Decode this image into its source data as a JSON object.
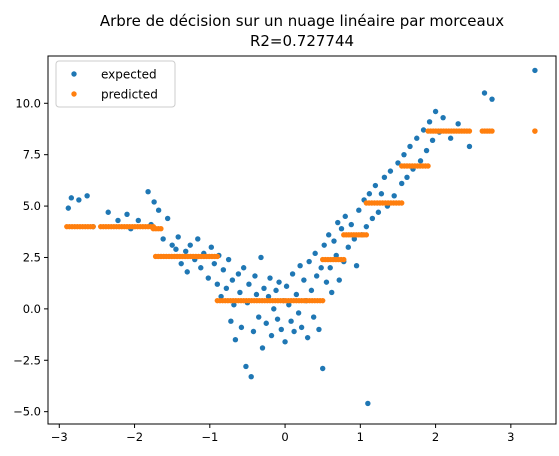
{
  "chart_data": {
    "type": "scatter",
    "title": "Arbre de décision sur un nuage linéaire par morceaux",
    "subtitle": "R2=0.727744",
    "xlabel": "",
    "ylabel": "",
    "xlim": [
      -3.15,
      3.6
    ],
    "ylim": [
      -5.6,
      12.3
    ],
    "xticks": [
      -3,
      -2,
      -1,
      0,
      1,
      2,
      3
    ],
    "yticks": [
      -5.0,
      -2.5,
      0.0,
      2.5,
      5.0,
      7.5,
      10.0
    ],
    "xtick_labels": [
      "−3",
      "−2",
      "−1",
      "0",
      "1",
      "2",
      "3"
    ],
    "ytick_labels": [
      "−5.0",
      "−2.5",
      "0.0",
      "2.5",
      "5.0",
      "7.5",
      "10.0"
    ],
    "grid": false,
    "legend_position": "top-left",
    "series": [
      {
        "name": "expected",
        "color": "#1f77b4",
        "points": [
          [
            -2.88,
            4.9
          ],
          [
            -2.84,
            5.4
          ],
          [
            -2.74,
            5.3
          ],
          [
            -2.63,
            5.5
          ],
          [
            -2.55,
            4.0
          ],
          [
            -2.35,
            4.7
          ],
          [
            -2.22,
            4.3
          ],
          [
            -2.1,
            4.6
          ],
          [
            -2.05,
            3.9
          ],
          [
            -1.95,
            4.3
          ],
          [
            -1.82,
            5.7
          ],
          [
            -1.78,
            4.1
          ],
          [
            -1.74,
            5.2
          ],
          [
            -1.68,
            4.8
          ],
          [
            -1.62,
            3.4
          ],
          [
            -1.56,
            4.4
          ],
          [
            -1.5,
            3.1
          ],
          [
            -1.45,
            2.9
          ],
          [
            -1.42,
            3.5
          ],
          [
            -1.38,
            2.2
          ],
          [
            -1.32,
            2.8
          ],
          [
            -1.3,
            1.8
          ],
          [
            -1.26,
            3.1
          ],
          [
            -1.2,
            2.4
          ],
          [
            -1.16,
            3.4
          ],
          [
            -1.12,
            2.0
          ],
          [
            -1.08,
            2.7
          ],
          [
            -1.02,
            1.5
          ],
          [
            -0.98,
            3.0
          ],
          [
            -0.94,
            2.2
          ],
          [
            -0.9,
            1.2
          ],
          [
            -0.88,
            2.6
          ],
          [
            -0.85,
            0.6
          ],
          [
            -0.82,
            1.9
          ],
          [
            -0.78,
            1.0
          ],
          [
            -0.75,
            2.4
          ],
          [
            -0.72,
            -0.6
          ],
          [
            -0.7,
            1.4
          ],
          [
            -0.68,
            0.2
          ],
          [
            -0.66,
            -1.5
          ],
          [
            -0.62,
            1.7
          ],
          [
            -0.6,
            0.8
          ],
          [
            -0.58,
            -0.9
          ],
          [
            -0.55,
            2.0
          ],
          [
            -0.52,
            -2.8
          ],
          [
            -0.5,
            0.3
          ],
          [
            -0.48,
            1.2
          ],
          [
            -0.45,
            -3.3
          ],
          [
            -0.42,
            -1.1
          ],
          [
            -0.4,
            1.6
          ],
          [
            -0.38,
            0.7
          ],
          [
            -0.35,
            -0.4
          ],
          [
            -0.32,
            2.5
          ],
          [
            -0.3,
            -1.9
          ],
          [
            -0.28,
            1.0
          ],
          [
            -0.25,
            -0.7
          ],
          [
            -0.22,
            0.6
          ],
          [
            -0.2,
            1.5
          ],
          [
            -0.18,
            -1.3
          ],
          [
            -0.15,
            0.0
          ],
          [
            -0.12,
            0.9
          ],
          [
            -0.1,
            -0.5
          ],
          [
            -0.08,
            1.3
          ],
          [
            -0.05,
            -1.0
          ],
          [
            -0.02,
            0.4
          ],
          [
            0.0,
            -1.6
          ],
          [
            0.02,
            1.1
          ],
          [
            0.05,
            0.2
          ],
          [
            0.08,
            -0.6
          ],
          [
            0.1,
            1.7
          ],
          [
            0.12,
            -1.1
          ],
          [
            0.15,
            0.7
          ],
          [
            0.18,
            -0.2
          ],
          [
            0.2,
            2.1
          ],
          [
            0.22,
            -0.9
          ],
          [
            0.25,
            1.4
          ],
          [
            0.28,
            0.4
          ],
          [
            0.3,
            -1.4
          ],
          [
            0.32,
            2.3
          ],
          [
            0.35,
            0.9
          ],
          [
            0.38,
            -0.4
          ],
          [
            0.4,
            2.7
          ],
          [
            0.42,
            1.6
          ],
          [
            0.45,
            -1.0
          ],
          [
            0.48,
            2.0
          ],
          [
            0.5,
            -2.9
          ],
          [
            0.52,
            3.1
          ],
          [
            0.55,
            1.3
          ],
          [
            0.58,
            3.6
          ],
          [
            0.6,
            2.0
          ],
          [
            0.62,
            0.8
          ],
          [
            0.65,
            3.3
          ],
          [
            0.68,
            2.6
          ],
          [
            0.7,
            4.2
          ],
          [
            0.72,
            1.4
          ],
          [
            0.75,
            3.9
          ],
          [
            0.78,
            2.3
          ],
          [
            0.8,
            4.5
          ],
          [
            0.84,
            3.0
          ],
          [
            0.88,
            4.1
          ],
          [
            0.92,
            3.4
          ],
          [
            0.95,
            2.1
          ],
          [
            0.98,
            4.8
          ],
          [
            1.02,
            3.6
          ],
          [
            1.05,
            5.3
          ],
          [
            1.08,
            4.0
          ],
          [
            1.1,
            -4.6
          ],
          [
            1.12,
            5.6
          ],
          [
            1.16,
            4.4
          ],
          [
            1.2,
            6.0
          ],
          [
            1.24,
            4.7
          ],
          [
            1.28,
            5.6
          ],
          [
            1.32,
            6.4
          ],
          [
            1.36,
            5.0
          ],
          [
            1.4,
            6.7
          ],
          [
            1.45,
            5.5
          ],
          [
            1.5,
            7.1
          ],
          [
            1.55,
            6.1
          ],
          [
            1.58,
            7.5
          ],
          [
            1.62,
            6.4
          ],
          [
            1.66,
            7.9
          ],
          [
            1.7,
            6.8
          ],
          [
            1.75,
            8.3
          ],
          [
            1.8,
            7.2
          ],
          [
            1.84,
            8.7
          ],
          [
            1.88,
            7.7
          ],
          [
            1.92,
            9.1
          ],
          [
            1.96,
            8.2
          ],
          [
            2.0,
            9.6
          ],
          [
            2.05,
            8.6
          ],
          [
            2.1,
            9.3
          ],
          [
            2.2,
            8.3
          ],
          [
            2.3,
            9.0
          ],
          [
            2.45,
            7.9
          ],
          [
            2.65,
            10.5
          ],
          [
            2.75,
            10.2
          ],
          [
            3.32,
            11.6
          ]
        ]
      },
      {
        "name": "predicted",
        "color": "#ff7f0e",
        "segments": [
          {
            "x0": -2.9,
            "x1": -2.55,
            "y": 4.0
          },
          {
            "x0": -2.45,
            "x1": -1.75,
            "y": 4.0
          },
          {
            "x0": -1.75,
            "x1": -1.65,
            "y": 3.9
          },
          {
            "x0": -1.72,
            "x1": -0.9,
            "y": 2.55
          },
          {
            "x0": -0.9,
            "x1": 0.5,
            "y": 0.4
          },
          {
            "x0": 0.5,
            "x1": 0.78,
            "y": 2.4
          },
          {
            "x0": 0.78,
            "x1": 1.08,
            "y": 3.6
          },
          {
            "x0": 1.08,
            "x1": 1.55,
            "y": 5.15
          },
          {
            "x0": 1.55,
            "x1": 1.9,
            "y": 6.95
          },
          {
            "x0": 1.9,
            "x1": 2.45,
            "y": 8.65
          },
          {
            "x0": 2.62,
            "x1": 2.75,
            "y": 8.65
          },
          {
            "x0": 3.32,
            "x1": 3.32,
            "y": 8.65
          }
        ]
      }
    ]
  }
}
